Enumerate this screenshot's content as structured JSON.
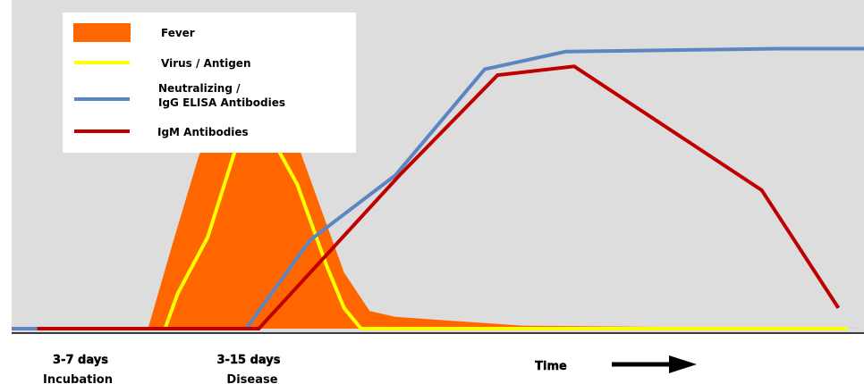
{
  "chart_data": {
    "type": "area",
    "title": "",
    "xlabel": "Time",
    "ylabel": "",
    "xlim": [
      0,
      100
    ],
    "ylim": [
      0,
      100
    ],
    "grid": false,
    "legend_position": "top-left",
    "series": [
      {
        "name": "Fever",
        "kind": "area",
        "color": "#ff6600",
        "x": [
          16,
          19,
          22,
          24,
          27,
          30,
          33,
          36,
          39,
          42,
          45,
          60,
          100
        ],
        "y": [
          0,
          30,
          59,
          70,
          78,
          83,
          67,
          43,
          19,
          6,
          4,
          1,
          0
        ]
      },
      {
        "name": "Virus / Antigen",
        "kind": "line",
        "color": "#ffff00",
        "x": [
          1,
          18,
          19.5,
          23,
          26.5,
          29.5,
          33.5,
          37,
          39,
          41,
          98
        ],
        "y": [
          0,
          0,
          12,
          31,
          63,
          70,
          49,
          21,
          7,
          0,
          0
        ]
      },
      {
        "name": "Neutralizing / IgG ELISA Antibodies",
        "kind": "line",
        "color": "#5b86c2",
        "x": [
          0,
          27.5,
          35,
          45,
          55.5,
          65,
          90,
          100
        ],
        "y": [
          0,
          0,
          30,
          52,
          88,
          94,
          95,
          95
        ]
      },
      {
        "name": "IgM Antibodies",
        "kind": "line",
        "color": "#c00000",
        "x": [
          3,
          29,
          45.5,
          57,
          66,
          88,
          97
        ],
        "y": [
          0,
          0,
          52,
          86,
          89,
          47,
          7
        ]
      }
    ],
    "x_annotations": [
      {
        "top": "3-7 days",
        "bottom": "Incubation"
      },
      {
        "top": "3-15 days",
        "bottom": "Disease"
      }
    ]
  }
}
